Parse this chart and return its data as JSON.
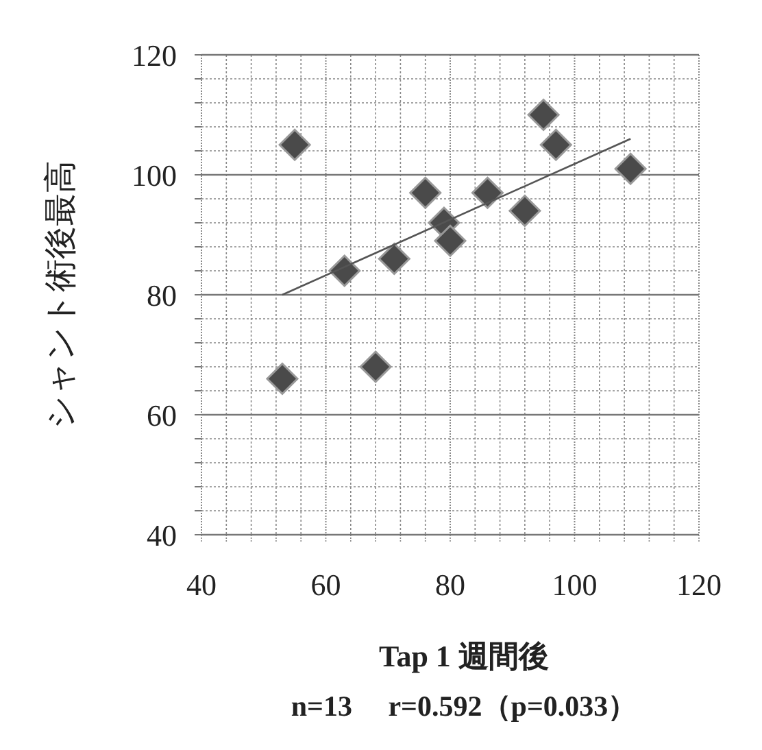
{
  "chart_data": {
    "type": "scatter",
    "xlabel": "Tap 1 週間後",
    "ylabel": "シャント術後最高",
    "annotations": [
      "n=13　 r=0.592（p=0.033）"
    ],
    "xlim": [
      40,
      120
    ],
    "ylim": [
      40,
      120
    ],
    "xticks": [
      40,
      {
        "value": 44,
        "label": null
      },
      {
        "value": 48,
        "label": null
      },
      {
        "value": 52,
        "label": null
      },
      {
        "value": 56,
        "label": null
      },
      60,
      {
        "value": 64,
        "label": null
      },
      {
        "value": 68,
        "label": null
      },
      {
        "value": 72,
        "label": null
      },
      {
        "value": 76,
        "label": null
      },
      80,
      {
        "value": 84,
        "label": null
      },
      {
        "value": 88,
        "label": null
      },
      {
        "value": 92,
        "label": null
      },
      {
        "value": 96,
        "label": null
      },
      100,
      {
        "value": 104,
        "label": null
      },
      {
        "value": 108,
        "label": null
      },
      {
        "value": 112,
        "label": null
      },
      {
        "value": 116,
        "label": null
      },
      120
    ],
    "yticks": [
      40,
      {
        "value": 44,
        "label": null
      },
      {
        "value": 48,
        "label": null
      },
      {
        "value": 52,
        "label": null
      },
      {
        "value": 56,
        "label": null
      },
      60,
      {
        "value": 64,
        "label": null
      },
      {
        "value": 68,
        "label": null
      },
      {
        "value": 72,
        "label": null
      },
      {
        "value": 76,
        "label": null
      },
      80,
      {
        "value": 84,
        "label": null
      },
      {
        "value": 88,
        "label": null
      },
      {
        "value": 92,
        "label": null
      },
      {
        "value": 96,
        "label": null
      },
      100,
      {
        "value": 104,
        "label": null
      },
      {
        "value": 108,
        "label": null
      },
      {
        "value": 112,
        "label": null
      },
      {
        "value": 116,
        "label": null
      },
      120
    ],
    "grid": true,
    "series": [
      {
        "marker": "diamond",
        "color": "#4a4a4a",
        "x": [
          53,
          55,
          63,
          68,
          71,
          76,
          79,
          80,
          86,
          92,
          95,
          97,
          109
        ],
        "values": [
          66,
          105,
          84,
          68,
          86,
          97,
          92,
          89,
          97,
          94,
          110,
          105,
          101
        ]
      },
      {
        "type": "line",
        "color": "#555555",
        "x": [
          53,
          109
        ],
        "values": [
          80,
          106
        ],
        "line_style": "solid"
      }
    ]
  }
}
